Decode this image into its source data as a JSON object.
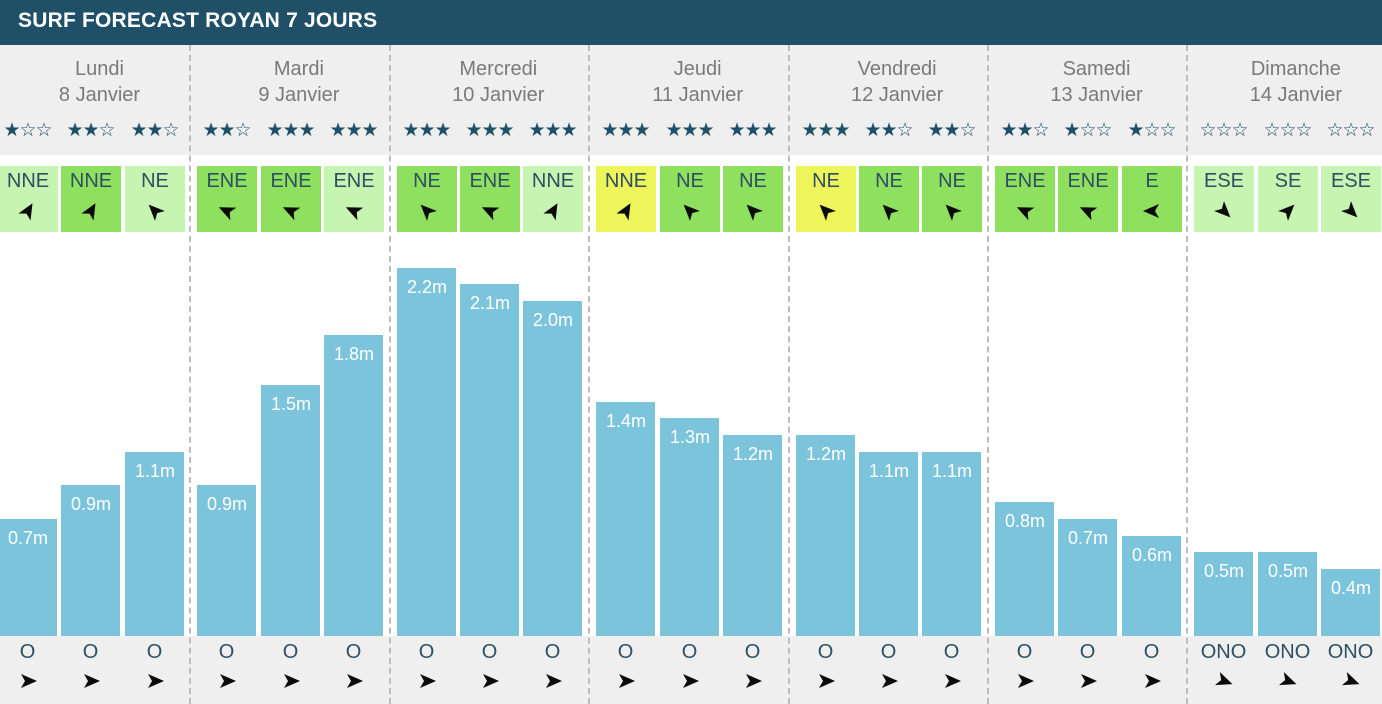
{
  "title": "SURF FORECAST ROYAN 7 JOURS",
  "colors": {
    "header": "#1f5068",
    "bar": "#7bc4dc",
    "wind_offshore": "#8ee05e",
    "wind_light": "#c5f5b0",
    "wind_cross": "#eef55a",
    "star": "#1f5068"
  },
  "days": [
    {
      "name": "Lundi",
      "date": "8 Janvier"
    },
    {
      "name": "Mardi",
      "date": "9 Janvier"
    },
    {
      "name": "Mercredi",
      "date": "10 Janvier"
    },
    {
      "name": "Jeudi",
      "date": "11 Janvier"
    },
    {
      "name": "Vendredi",
      "date": "12 Janvier"
    },
    {
      "name": "Samedi",
      "date": "13 Janvier"
    },
    {
      "name": "Dimanche",
      "date": "14 Janvier"
    }
  ],
  "chart_data": {
    "type": "bar",
    "unit": "m",
    "ylim": [
      0,
      2.2
    ],
    "series": [
      {
        "values": [
          0.7,
          0.9,
          1.1,
          0.9,
          1.5,
          1.8,
          2.2,
          2.1,
          2.0,
          1.4,
          1.3,
          1.2,
          1.2,
          1.1,
          1.1,
          0.8,
          0.7,
          0.6,
          0.5,
          0.5,
          0.4
        ]
      }
    ],
    "labels": [
      "0.7m",
      "0.9m",
      "1.1m",
      "0.9m",
      "1.5m",
      "1.8m",
      "2.2m",
      "2.1m",
      "2.0m",
      "1.4m",
      "1.3m",
      "1.2m",
      "1.2m",
      "1.1m",
      "1.1m",
      "0.8m",
      "0.7m",
      "0.6m",
      "0.5m",
      "0.5m",
      "0.4m"
    ],
    "ratings": [
      1,
      2,
      2,
      2,
      3,
      3,
      3,
      3,
      3,
      3,
      3,
      3,
      3,
      2,
      2,
      2,
      1,
      1,
      0,
      0,
      0
    ],
    "wind_dirs": [
      "NNE",
      "NNE",
      "NE",
      "ENE",
      "ENE",
      "ENE",
      "NE",
      "ENE",
      "NNE",
      "NNE",
      "NE",
      "NE",
      "NE",
      "NE",
      "NE",
      "ENE",
      "ENE",
      "E",
      "ESE",
      "SE",
      "ESE"
    ],
    "wind_colors": [
      "light",
      "offshore",
      "light",
      "offshore",
      "offshore",
      "light",
      "offshore",
      "offshore",
      "light",
      "cross",
      "offshore",
      "offshore",
      "cross",
      "offshore",
      "offshore",
      "offshore",
      "offshore",
      "offshore",
      "light",
      "light",
      "light"
    ],
    "wind_arrow_deg": [
      300,
      300,
      225,
      205,
      205,
      205,
      225,
      205,
      300,
      300,
      225,
      225,
      225,
      225,
      225,
      205,
      205,
      180,
      45,
      315,
      45
    ],
    "swell_dirs": [
      "O",
      "O",
      "O",
      "O",
      "O",
      "O",
      "O",
      "O",
      "O",
      "O",
      "O",
      "O",
      "O",
      "O",
      "O",
      "O",
      "O",
      "O",
      "ONO",
      "ONO",
      "ONO"
    ],
    "swell_arrow_deg": [
      0,
      0,
      0,
      0,
      0,
      0,
      0,
      0,
      0,
      0,
      0,
      0,
      0,
      0,
      0,
      0,
      0,
      0,
      20,
      20,
      20
    ]
  }
}
